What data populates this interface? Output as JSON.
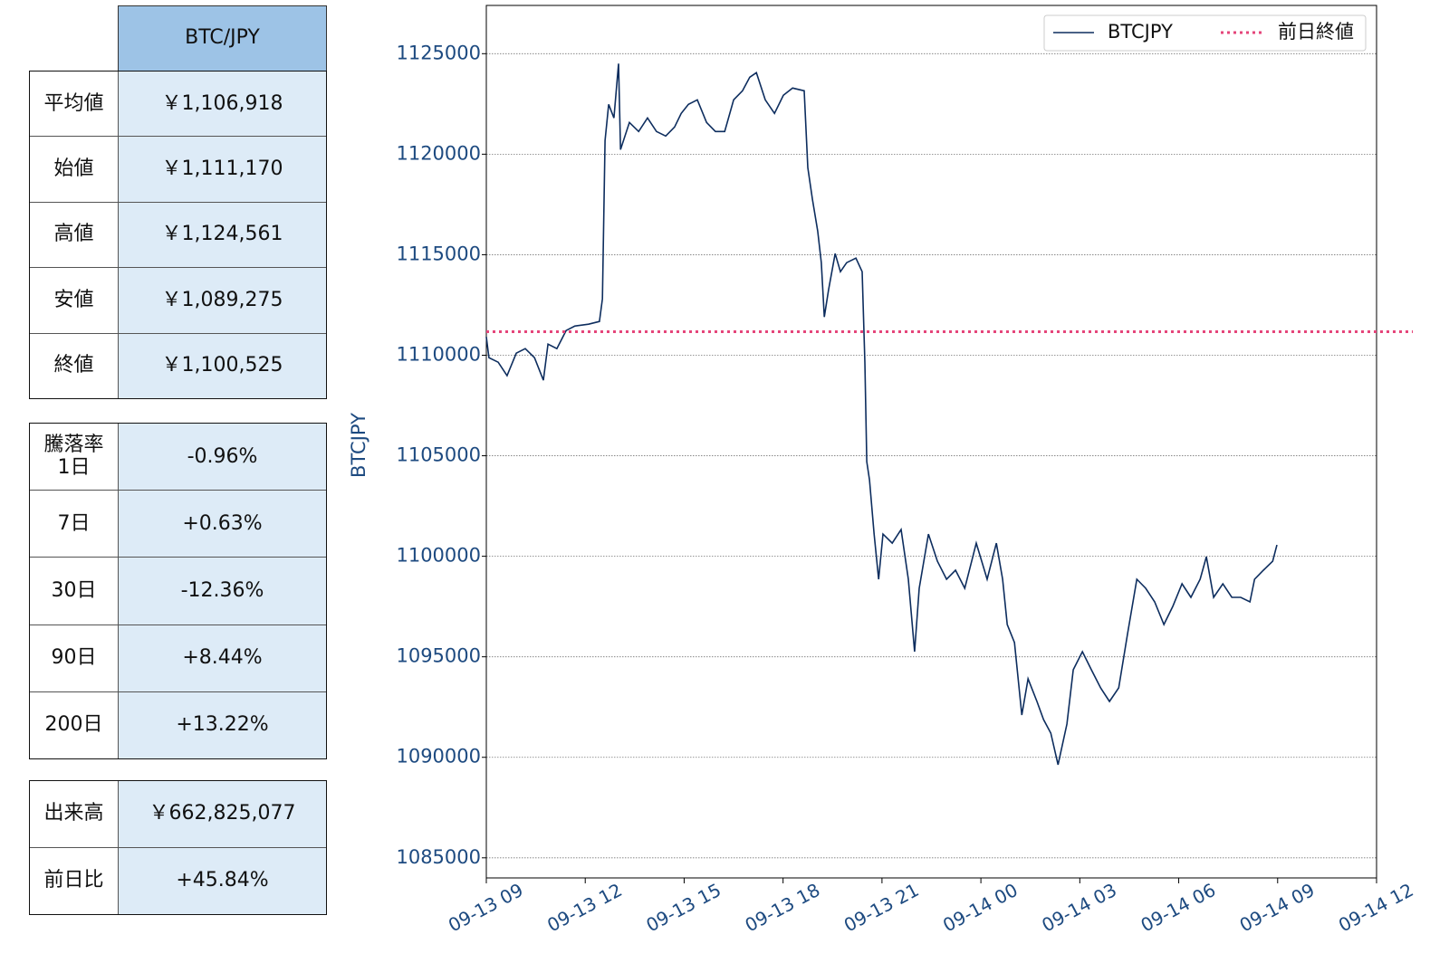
{
  "tables": [
    {
      "header": "BTC/JPY",
      "rows": [
        [
          "平均値",
          "￥1,106,918"
        ],
        [
          "始値",
          "￥1,111,170"
        ],
        [
          "高値",
          "￥1,124,561"
        ],
        [
          "安値",
          "￥1,089,275"
        ],
        [
          "終値",
          "￥1,100,525"
        ]
      ]
    },
    {
      "rows": [
        [
          "騰落率\n1日",
          "-0.96%"
        ],
        [
          "7日",
          "+0.63%"
        ],
        [
          "30日",
          "-12.36%"
        ],
        [
          "90日",
          "+8.44%"
        ],
        [
          "200日",
          "+13.22%"
        ]
      ]
    },
    {
      "rows": [
        [
          "出来高",
          "￥662,825,077"
        ],
        [
          "前日比",
          "+45.84%"
        ]
      ]
    }
  ],
  "chart_data": {
    "type": "line",
    "y_label": "BTCJPY",
    "grid": true,
    "legend": "upper right",
    "xlim": [
      0,
      27
    ],
    "xticks": [
      {
        "value": 0,
        "label": "09-13 09"
      },
      {
        "value": 3,
        "label": "09-13 12"
      },
      {
        "value": 6,
        "label": "09-13 15"
      },
      {
        "value": 9,
        "label": "09-13 18"
      },
      {
        "value": 12,
        "label": "09-13 21"
      },
      {
        "value": 15,
        "label": "09-14 00"
      },
      {
        "value": 18,
        "label": "09-14 03"
      },
      {
        "value": 21,
        "label": "09-14 06"
      },
      {
        "value": 24,
        "label": "09-14 09"
      },
      {
        "value": 27,
        "label": "09-14 12"
      }
    ],
    "ylim": [
      1084000,
      1127400
    ],
    "yticks": [
      1085000,
      1090000,
      1095000,
      1100000,
      1105000,
      1110000,
      1115000,
      1120000,
      1125000
    ],
    "x": [
      0,
      0.08,
      0.36,
      0.63,
      0.91,
      1.18,
      1.46,
      1.73,
      1.87,
      2.14,
      2.42,
      2.69,
      3.1,
      3.43,
      3.52,
      3.6,
      3.71,
      3.87,
      4.01,
      4.07,
      4.34,
      4.62,
      4.89,
      5.16,
      5.44,
      5.71,
      5.91,
      6.13,
      6.4,
      6.68,
      6.95,
      7.23,
      7.5,
      7.77,
      7.99,
      8.19,
      8.46,
      8.74,
      9.01,
      9.29,
      9.64,
      9.75,
      9.89,
      10.05,
      10.16,
      10.25,
      10.38,
      10.58,
      10.74,
      10.93,
      11.21,
      11.4,
      11.48,
      11.54,
      11.62,
      11.76,
      11.9,
      12.03,
      12.31,
      12.58,
      12.8,
      12.99,
      13.13,
      13.41,
      13.68,
      13.96,
      14.23,
      14.51,
      14.86,
      15.19,
      15.47,
      15.66,
      15.8,
      16.02,
      16.24,
      16.43,
      16.7,
      16.9,
      17.12,
      17.34,
      17.61,
      17.8,
      18.08,
      18.35,
      18.63,
      18.9,
      19.18,
      19.45,
      19.73,
      20,
      20.27,
      20.55,
      20.82,
      21.1,
      21.37,
      21.65,
      21.84,
      22.06,
      22.34,
      22.61,
      22.88,
      23.16,
      23.3,
      23.57,
      23.85,
      23.98
    ],
    "series": [
      {
        "name": "BTCJPY",
        "color": "#0d2d5e",
        "values": [
          1110915,
          1109880,
          1109655,
          1108980,
          1110105,
          1110330,
          1109880,
          1108755,
          1110555,
          1110330,
          1111230,
          1111455,
          1111545,
          1111680,
          1112805,
          1120680,
          1122480,
          1121805,
          1124505,
          1120230,
          1121580,
          1121130,
          1121805,
          1121130,
          1120905,
          1121355,
          1122030,
          1122480,
          1122705,
          1121580,
          1121130,
          1121130,
          1122705,
          1123155,
          1123830,
          1124055,
          1122705,
          1122030,
          1122930,
          1123290,
          1123155,
          1119330,
          1117755,
          1116180,
          1114605,
          1111905,
          1113255,
          1115055,
          1114155,
          1114605,
          1114830,
          1114155,
          1109655,
          1104705,
          1103805,
          1101105,
          1098855,
          1101105,
          1100655,
          1101330,
          1098855,
          1095255,
          1098405,
          1101105,
          1099755,
          1098855,
          1099305,
          1098405,
          1100655,
          1098855,
          1100655,
          1098855,
          1096605,
          1095705,
          1092105,
          1093905,
          1092780,
          1091880,
          1091205,
          1089630,
          1091655,
          1094355,
          1095255,
          1094355,
          1093455,
          1092780,
          1093455,
          1096155,
          1098855,
          1098405,
          1097730,
          1096605,
          1097505,
          1098630,
          1097955,
          1098855,
          1099980,
          1097955,
          1098630,
          1097955,
          1097955,
          1097730,
          1098855,
          1099305,
          1099755,
          1100565
        ]
      }
    ],
    "hline": {
      "name": "前日終値",
      "value": 1111170,
      "color": "#e5457a"
    }
  }
}
